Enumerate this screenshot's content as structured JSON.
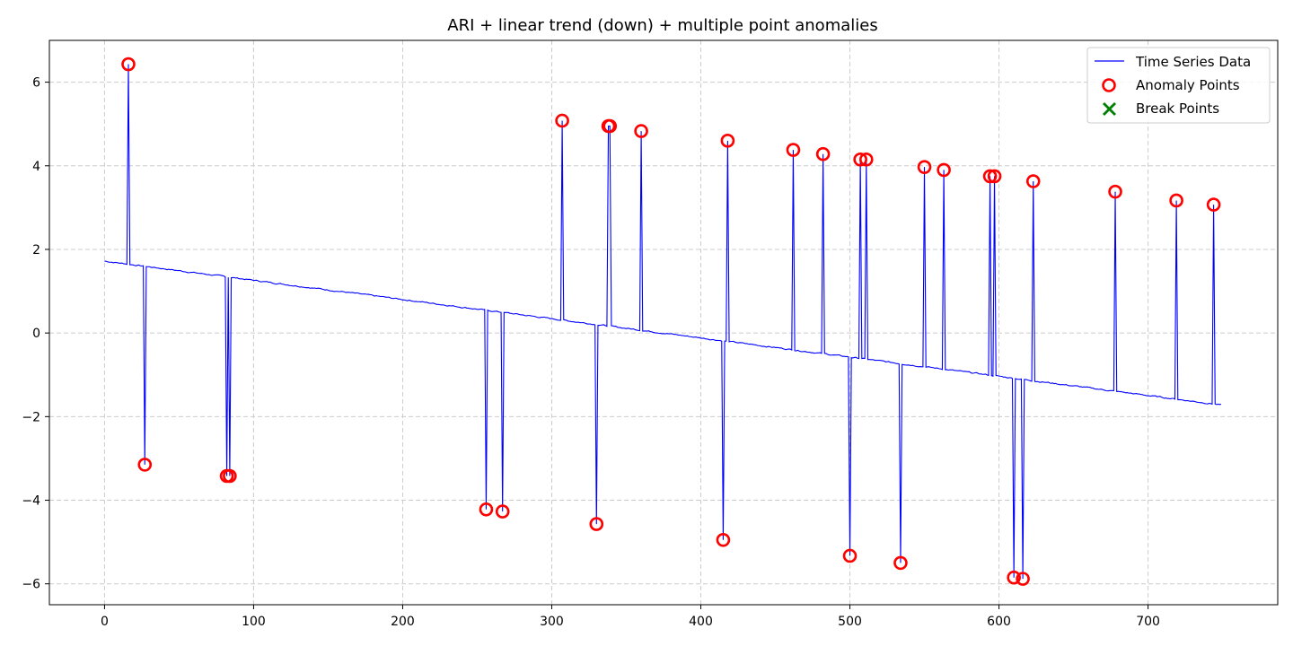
{
  "chart_data": {
    "type": "line",
    "title": "ARI + linear trend (down) + multiple point anomalies",
    "xlabel": "",
    "ylabel": "",
    "xlim": [
      -37,
      787
    ],
    "ylim": [
      -6.5,
      7.0
    ],
    "x_ticks": [
      0,
      100,
      200,
      300,
      400,
      500,
      600,
      700
    ],
    "y_ticks": [
      -6,
      -4,
      -2,
      0,
      2,
      4,
      6
    ],
    "x_tick_labels": [
      "0",
      "100",
      "200",
      "300",
      "400",
      "500",
      "600",
      "700"
    ],
    "y_tick_labels": [
      "−6",
      "−4",
      "−2",
      "0",
      "2",
      "4",
      "6"
    ],
    "grid": true,
    "legend_position": "top-right",
    "series": [
      {
        "name": "Time Series Data",
        "kind": "line",
        "color": "#0000ff",
        "trend": {
          "x_start": 0,
          "y_start": 1.72,
          "x_end": 749,
          "y_end": -1.72
        }
      },
      {
        "name": "Anomaly Points",
        "kind": "marker",
        "marker": "circle-open",
        "color": "#ff0000",
        "points": [
          {
            "x": 16,
            "y": 6.43
          },
          {
            "x": 27,
            "y": -3.15
          },
          {
            "x": 82,
            "y": -3.42
          },
          {
            "x": 84,
            "y": -3.42
          },
          {
            "x": 256,
            "y": -4.22
          },
          {
            "x": 267,
            "y": -4.27
          },
          {
            "x": 307,
            "y": 5.08
          },
          {
            "x": 330,
            "y": -4.57
          },
          {
            "x": 338,
            "y": 4.95
          },
          {
            "x": 339,
            "y": 4.95
          },
          {
            "x": 360,
            "y": 4.83
          },
          {
            "x": 415,
            "y": -4.95
          },
          {
            "x": 418,
            "y": 4.6
          },
          {
            "x": 462,
            "y": 4.38
          },
          {
            "x": 482,
            "y": 4.28
          },
          {
            "x": 500,
            "y": -5.33
          },
          {
            "x": 507,
            "y": 4.15
          },
          {
            "x": 511,
            "y": 4.15
          },
          {
            "x": 534,
            "y": -5.5
          },
          {
            "x": 550,
            "y": 3.97
          },
          {
            "x": 563,
            "y": 3.9
          },
          {
            "x": 594,
            "y": 3.75
          },
          {
            "x": 597,
            "y": 3.75
          },
          {
            "x": 610,
            "y": -5.85
          },
          {
            "x": 616,
            "y": -5.88
          },
          {
            "x": 623,
            "y": 3.63
          },
          {
            "x": 678,
            "y": 3.38
          },
          {
            "x": 719,
            "y": 3.17
          },
          {
            "x": 744,
            "y": 3.07
          }
        ]
      },
      {
        "name": "Break Points",
        "kind": "marker",
        "marker": "x",
        "color": "#008000",
        "points": []
      }
    ]
  }
}
